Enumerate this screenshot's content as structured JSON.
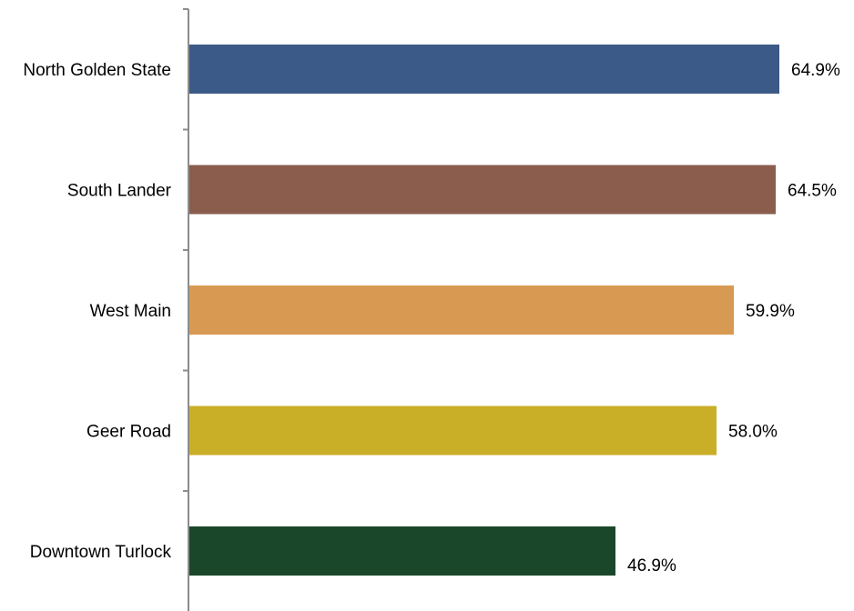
{
  "chart_data": {
    "type": "bar",
    "orientation": "horizontal",
    "categories": [
      "North Golden State",
      "South Lander",
      "West Main",
      "Geer Road",
      "Downtown Turlock"
    ],
    "values": [
      64.9,
      64.5,
      59.9,
      58.0,
      46.9
    ],
    "value_labels": [
      "64.9%",
      "64.5%",
      "59.9%",
      "58.0%",
      "46.9%"
    ],
    "colors": [
      "#3c5a87",
      "#8b5d4d",
      "#d89a52",
      "#c9ae28",
      "#1a472a"
    ],
    "xlim": [
      0,
      72
    ],
    "title": "",
    "xlabel": "",
    "ylabel": "",
    "grid": false,
    "legend": "none"
  }
}
